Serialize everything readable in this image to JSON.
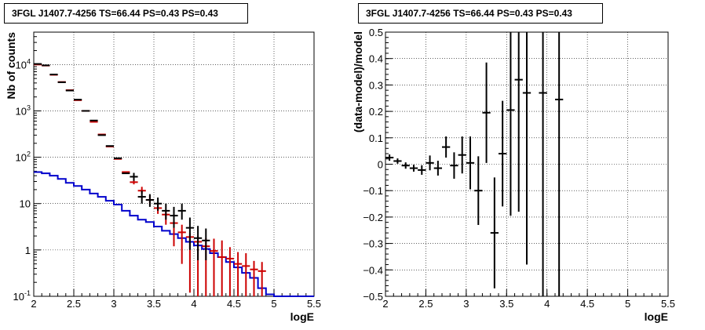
{
  "chart_data": [
    {
      "type": "step-histogram-with-errorbars",
      "title": "3FGL J1407.7-4256 TS=66.44 PS=0.43 PS=0.43",
      "xlabel": "logE",
      "ylabel": "Nb of counts",
      "xlim": [
        2,
        5.5
      ],
      "ylim": [
        0.1,
        50000
      ],
      "yscale": "log",
      "grid": true,
      "x_ticks": [
        "2",
        "2.5",
        "3",
        "3.5",
        "4",
        "4.5",
        "5",
        "5.5"
      ],
      "y_ticks": [
        {
          "value": 0.1,
          "base": "10",
          "exp": "-1"
        },
        {
          "value": 1,
          "base": "1",
          "exp": ""
        },
        {
          "value": 10,
          "base": "10",
          "exp": ""
        },
        {
          "value": 100,
          "base": "10",
          "exp": "2"
        },
        {
          "value": 1000,
          "base": "10",
          "exp": "3"
        },
        {
          "value": 10000,
          "base": "10",
          "exp": "4"
        }
      ],
      "series": [
        {
          "color": "#0000cc",
          "kind": "step",
          "bin_width": 0.1,
          "x": [
            2.0,
            2.1,
            2.2,
            2.3,
            2.4,
            2.5,
            2.6,
            2.7,
            2.8,
            2.9,
            3.0,
            3.1,
            3.2,
            3.3,
            3.4,
            3.5,
            3.6,
            3.7,
            3.8,
            3.9,
            4.0,
            4.1,
            4.2,
            4.3,
            4.4,
            4.5,
            4.6,
            4.7,
            4.8,
            4.9,
            5.0,
            5.1,
            5.2,
            5.3,
            5.4
          ],
          "values": [
            48,
            45,
            40,
            34,
            28,
            24,
            20,
            16.5,
            14,
            11.5,
            9.5,
            7,
            5.5,
            4.5,
            4,
            3.2,
            2.6,
            2.2,
            1.8,
            1.5,
            1.25,
            1.05,
            0.85,
            0.7,
            0.55,
            0.42,
            0.32,
            0.25,
            0.15,
            0.11,
            0.1,
            0.1,
            0.1,
            0.1,
            0.1
          ]
        },
        {
          "color": "#cc0000",
          "kind": "errorbar",
          "x": [
            2.05,
            2.15,
            2.25,
            2.35,
            2.45,
            2.55,
            2.65,
            2.75,
            2.85,
            2.95,
            3.05,
            3.15,
            3.25,
            3.35,
            3.45,
            3.55,
            3.65,
            3.75,
            3.85,
            3.95,
            4.05,
            4.15,
            4.25,
            4.35,
            4.45,
            4.55,
            4.65,
            4.75,
            4.85
          ],
          "values": [
            10000,
            9500,
            6000,
            4200,
            2800,
            1700,
            1000,
            580,
            310,
            170,
            92,
            48,
            29,
            19,
            12,
            8,
            5.8,
            3.8,
            2.4,
            1.9,
            1.5,
            1.2,
            0.95,
            0.7,
            0.65,
            0.5,
            0.45,
            0.38,
            0.35
          ],
          "err_low": [
            0,
            0,
            0,
            0,
            0,
            0,
            0,
            0,
            0,
            0,
            0,
            0,
            3,
            2.5,
            2.5,
            2,
            2.3,
            2.6,
            1.9,
            1.78,
            1.43,
            1.15,
            0.92,
            0.68,
            0.63,
            0.49,
            0.44,
            0.37,
            0.34
          ],
          "err_high": [
            0,
            0,
            0,
            0,
            0,
            0,
            0,
            0,
            0,
            0,
            0,
            0,
            4,
            4,
            3,
            2.5,
            1.2,
            0.5,
            1.1,
            0.4,
            0.5,
            0.6,
            0.8,
            0.9,
            0.5,
            0.4,
            0.4,
            0.2,
            0.2
          ]
        },
        {
          "color": "#000000",
          "kind": "errorbar",
          "x": [
            2.05,
            2.15,
            2.25,
            2.35,
            2.45,
            2.55,
            2.65,
            2.75,
            2.85,
            2.95,
            3.05,
            3.15,
            3.25,
            3.35,
            3.45,
            3.55,
            3.65,
            3.75,
            3.85,
            3.95,
            4.05,
            4.15
          ],
          "values": [
            10300,
            9600,
            6100,
            4150,
            2750,
            1750,
            1000,
            620,
            300,
            175,
            95,
            45,
            38,
            14,
            12,
            10,
            7,
            5.5,
            7,
            3,
            1.8,
            1.6
          ],
          "err_low": [
            0,
            0,
            0,
            0,
            0,
            0,
            0,
            0,
            0,
            0,
            0,
            0,
            7,
            4,
            3.5,
            3,
            2.5,
            2.5,
            2.5,
            2,
            1.2,
            1
          ],
          "err_high": [
            0,
            0,
            0,
            0,
            0,
            0,
            0,
            0,
            0,
            0,
            0,
            0,
            8,
            5,
            4,
            3.5,
            3,
            3,
            3,
            2,
            1.5,
            1.3
          ]
        }
      ]
    },
    {
      "type": "scatter-with-errorbars",
      "title": "3FGL J1407.7-4256 TS=66.44 PS=0.43 PS=0.43",
      "xlabel": "logE",
      "ylabel": "(data-model)/model",
      "xlim": [
        2,
        5.5
      ],
      "ylim": [
        -0.5,
        0.5
      ],
      "grid": true,
      "x_ticks": [
        "2",
        "2.5",
        "3",
        "3.5",
        "4",
        "4.5",
        "5",
        "5.5"
      ],
      "y_ticks": [
        "−0.5",
        "−0.4",
        "−0.3",
        "−0.2",
        "−0.1",
        "0",
        "0.1",
        "0.2",
        "0.3",
        "0.4",
        "0.5"
      ],
      "series": [
        {
          "color": "#000000",
          "x": [
            2.05,
            2.15,
            2.25,
            2.35,
            2.45,
            2.55,
            2.65,
            2.75,
            2.85,
            2.95,
            3.05,
            3.15,
            3.25,
            3.35,
            3.45,
            3.55,
            3.65,
            3.75,
            3.95,
            4.15
          ],
          "y": [
            0.025,
            0.012,
            -0.005,
            -0.015,
            -0.022,
            0.005,
            -0.015,
            0.065,
            -0.005,
            0.035,
            0.005,
            -0.1,
            0.195,
            -0.26,
            0.04,
            0.205,
            0.32,
            0.27,
            0.27,
            0.245
          ],
          "err": [
            0.012,
            0.01,
            0.012,
            0.013,
            0.018,
            0.028,
            0.028,
            0.04,
            0.05,
            0.07,
            0.1,
            0.13,
            0.19,
            0.21,
            0.2,
            0.4,
            0.5,
            0.65,
            0.9,
            1.1
          ]
        }
      ]
    }
  ]
}
